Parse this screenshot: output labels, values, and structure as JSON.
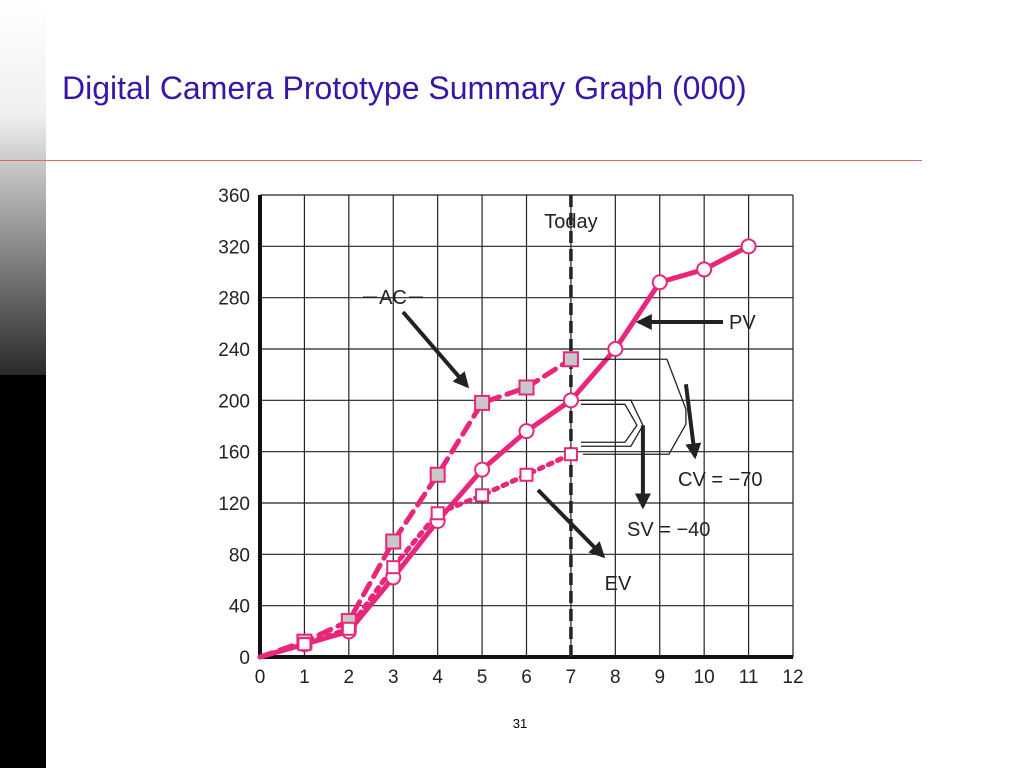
{
  "slide": {
    "title": "Digital Camera Prototype Summary Graph (000)",
    "page_number": "31"
  },
  "colors": {
    "title": "#3a16a8",
    "rule": "#d8686a",
    "series": "#e8267a",
    "ac_marker_fill": "#c8c8c8",
    "today_line": "#222222"
  },
  "chart_data": {
    "type": "line",
    "x_ticks": [
      "0",
      "1",
      "2",
      "3",
      "4",
      "5",
      "6",
      "7",
      "8",
      "9",
      "10",
      "11",
      "12"
    ],
    "y_ticks": [
      "0",
      "40",
      "80",
      "120",
      "160",
      "200",
      "240",
      "280",
      "320",
      "360"
    ],
    "xlim": [
      0,
      12
    ],
    "ylim": [
      0,
      360
    ],
    "grid": true,
    "series": [
      {
        "name": "PV",
        "style": "solid",
        "marker": "circle",
        "x": [
          0,
          1,
          2,
          3,
          4,
          5,
          6,
          7,
          8,
          9,
          10,
          11
        ],
        "y": [
          0,
          10,
          20,
          62,
          106,
          146,
          176,
          200,
          240,
          292,
          302,
          320
        ]
      },
      {
        "name": "AC",
        "style": "dashed",
        "marker": "square",
        "x": [
          0,
          1,
          2,
          3,
          4,
          5,
          6,
          7
        ],
        "y": [
          0,
          12,
          28,
          90,
          142,
          198,
          210,
          232
        ]
      },
      {
        "name": "EV",
        "style": "dotted",
        "marker": "square-open",
        "x": [
          0,
          1,
          2,
          3,
          4,
          5,
          6,
          7
        ],
        "y": [
          0,
          10,
          22,
          70,
          112,
          126,
          142,
          158
        ]
      }
    ],
    "today": {
      "x": 7,
      "label": "Today"
    },
    "annotations": {
      "ac": "AC",
      "pv": "PV",
      "ev": "EV",
      "cv": "CV = −70",
      "sv": "SV = −40"
    }
  }
}
